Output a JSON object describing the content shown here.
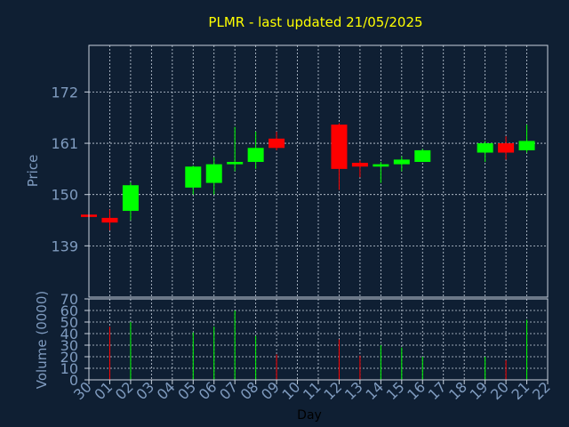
{
  "chart_data": {
    "type": "candlestick",
    "title": "PLMR - last updated 21/05/2025",
    "xlabel": "Day",
    "ylabel": "Price",
    "volume_label": "Volume (0000)",
    "x_ticks": [
      "30",
      "01",
      "02",
      "03",
      "04",
      "05",
      "06",
      "07",
      "08",
      "09",
      "10",
      "11",
      "12",
      "13",
      "14",
      "15",
      "16",
      "17",
      "18",
      "19",
      "20",
      "21",
      "22"
    ],
    "price_ticks": [
      139,
      150,
      161,
      172
    ],
    "volume_ticks": [
      0,
      10,
      20,
      30,
      40,
      50,
      60,
      70
    ],
    "price_range": [
      128,
      182
    ],
    "volume_range": [
      0,
      70
    ],
    "grid": true,
    "colors": {
      "up": "#00ff00",
      "down": "#ff0000",
      "title": "#ffff00",
      "axis": "#7f9bbf",
      "background": "#0f1f33"
    },
    "candles": [
      {
        "day": "30",
        "open": 145.7,
        "high": 145.7,
        "low": 145.2,
        "close": 145.2,
        "volume": 0
      },
      {
        "day": "01",
        "open": 145.0,
        "high": 146.8,
        "low": 142.3,
        "close": 144.0,
        "volume": 46
      },
      {
        "day": "02",
        "open": 146.5,
        "high": 152.6,
        "low": 144.5,
        "close": 152.0,
        "volume": 50
      },
      {
        "day": "05",
        "open": 151.5,
        "high": 156.2,
        "low": 150.0,
        "close": 156.0,
        "volume": 41
      },
      {
        "day": "06",
        "open": 152.5,
        "high": 158.0,
        "low": 150.0,
        "close": 156.5,
        "volume": 46
      },
      {
        "day": "07",
        "open": 156.5,
        "high": 164.5,
        "low": 155.0,
        "close": 157.0,
        "volume": 60
      },
      {
        "day": "08",
        "open": 157.0,
        "high": 163.5,
        "low": 155.5,
        "close": 160.0,
        "volume": 38
      },
      {
        "day": "09",
        "open": 162.0,
        "high": 163.5,
        "low": 159.5,
        "close": 160.0,
        "volume": 22
      },
      {
        "day": "12",
        "open": 165.0,
        "high": 165.3,
        "low": 151.0,
        "close": 155.5,
        "volume": 35
      },
      {
        "day": "13",
        "open": 156.8,
        "high": 157.3,
        "low": 153.7,
        "close": 156.0,
        "volume": 21
      },
      {
        "day": "14",
        "open": 156.0,
        "high": 157.0,
        "low": 152.5,
        "close": 156.5,
        "volume": 30
      },
      {
        "day": "15",
        "open": 156.5,
        "high": 158.2,
        "low": 155.0,
        "close": 157.5,
        "volume": 28
      },
      {
        "day": "16",
        "open": 157.0,
        "high": 159.8,
        "low": 157.0,
        "close": 159.5,
        "volume": 20
      },
      {
        "day": "19",
        "open": 159.0,
        "high": 161.5,
        "low": 157.0,
        "close": 161.0,
        "volume": 20
      },
      {
        "day": "20",
        "open": 161.0,
        "high": 162.5,
        "low": 157.5,
        "close": 159.0,
        "volume": 17
      },
      {
        "day": "21",
        "open": 159.5,
        "high": 165.0,
        "low": 159.0,
        "close": 161.5,
        "volume": 52
      }
    ]
  }
}
